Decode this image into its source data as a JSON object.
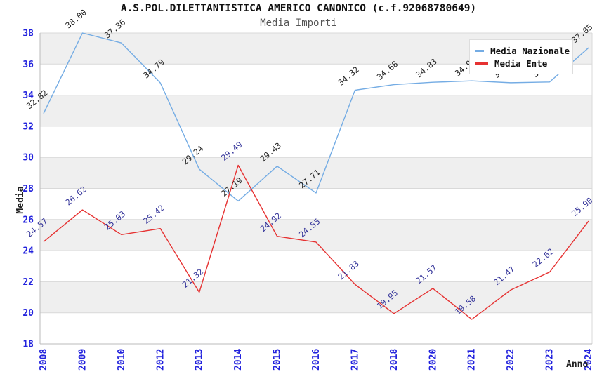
{
  "chart_data": {
    "type": "line",
    "title": "A.S.POL.DILETTANTISTICA AMERICO CANONICO (c.f.92068780649)",
    "subtitle": "Media Importi",
    "xlabel": "Anno",
    "ylabel": "Media",
    "categories": [
      "2008",
      "2009",
      "2010",
      "2012",
      "2013",
      "2014",
      "2015",
      "2016",
      "2017",
      "2018",
      "2020",
      "2021",
      "2022",
      "2023",
      "2024"
    ],
    "series": [
      {
        "name": "Media Nazionale",
        "color": "#74ace4",
        "label_color": "#222222",
        "values": [
          32.82,
          38.0,
          37.36,
          34.79,
          29.24,
          27.19,
          29.43,
          27.71,
          34.32,
          34.68,
          34.83,
          34.92,
          34.8,
          34.85,
          37.05
        ]
      },
      {
        "name": "Media Ente",
        "color": "#e63232",
        "label_color": "#333399",
        "values": [
          24.57,
          26.62,
          25.03,
          25.42,
          21.32,
          29.49,
          24.92,
          24.55,
          21.83,
          19.95,
          21.57,
          19.58,
          21.47,
          22.62,
          25.9
        ]
      }
    ],
    "ylim": [
      18,
      38
    ],
    "yticks": [
      18,
      20,
      22,
      24,
      26,
      28,
      30,
      32,
      34,
      36,
      38
    ],
    "grid": true,
    "band_fill": "#efefef",
    "grid_color": "#d9d9d9",
    "axis_color": "#bbbbbb",
    "tick_label_color": "#2222dd",
    "legend_position": "top-right"
  }
}
